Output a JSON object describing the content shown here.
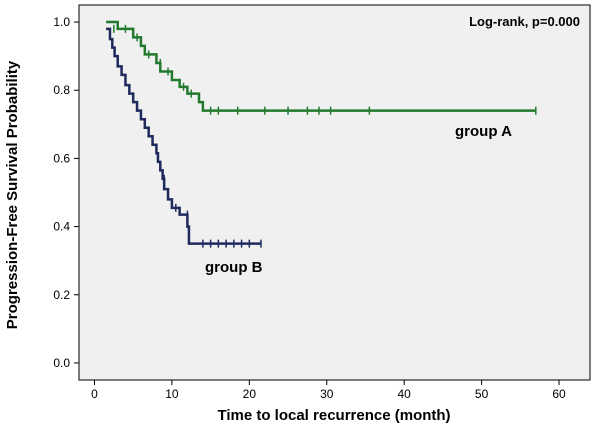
{
  "chart_data": {
    "type": "line",
    "subtype": "kaplan-meier step",
    "xlabel": "Time to local recurrence (month)",
    "ylabel": "Progression-Free Survival Probability",
    "xlim": [
      -2,
      64
    ],
    "ylim": [
      -0.05,
      1.05
    ],
    "xticks": [
      "0",
      "10",
      "20",
      "30",
      "40",
      "50",
      "60"
    ],
    "yticks": [
      "0.0",
      "0.2",
      "0.4",
      "0.6",
      "0.8",
      "1.0"
    ],
    "grid": false,
    "annotation": "Log-rank, p=0.000",
    "plot_background": "#f0f0f0",
    "series": [
      {
        "name": "group A",
        "color": "#217a2e",
        "steps": [
          [
            1.5,
            1.0
          ],
          [
            3.0,
            0.98
          ],
          [
            5.0,
            0.955
          ],
          [
            6.0,
            0.93
          ],
          [
            6.5,
            0.905
          ],
          [
            8.0,
            0.88
          ],
          [
            8.5,
            0.855
          ],
          [
            10.0,
            0.83
          ],
          [
            11.0,
            0.81
          ],
          [
            12.0,
            0.79
          ],
          [
            13.5,
            0.765
          ],
          [
            14.0,
            0.74
          ],
          [
            57.0,
            0.74
          ]
        ],
        "censored": [
          [
            2.5,
            0.98
          ],
          [
            4.0,
            0.98
          ],
          [
            5.5,
            0.955
          ],
          [
            7.0,
            0.905
          ],
          [
            8.5,
            0.88
          ],
          [
            9.5,
            0.855
          ],
          [
            11.5,
            0.81
          ],
          [
            12.5,
            0.79
          ],
          [
            15.0,
            0.74
          ],
          [
            16.0,
            0.74
          ],
          [
            18.5,
            0.74
          ],
          [
            22.0,
            0.74
          ],
          [
            25.0,
            0.74
          ],
          [
            27.5,
            0.74
          ],
          [
            29.0,
            0.74
          ],
          [
            30.5,
            0.74
          ],
          [
            35.5,
            0.74
          ],
          [
            57.0,
            0.74
          ]
        ]
      },
      {
        "name": "group B",
        "color": "#1f2a5c",
        "steps": [
          [
            1.5,
            0.98
          ],
          [
            2.0,
            0.95
          ],
          [
            2.3,
            0.925
          ],
          [
            2.6,
            0.9
          ],
          [
            3.0,
            0.87
          ],
          [
            3.5,
            0.845
          ],
          [
            4.0,
            0.815
          ],
          [
            4.5,
            0.79
          ],
          [
            5.0,
            0.765
          ],
          [
            5.5,
            0.74
          ],
          [
            6.0,
            0.715
          ],
          [
            6.5,
            0.69
          ],
          [
            7.0,
            0.665
          ],
          [
            7.5,
            0.64
          ],
          [
            8.0,
            0.615
          ],
          [
            8.2,
            0.59
          ],
          [
            8.5,
            0.565
          ],
          [
            8.8,
            0.54
          ],
          [
            9.0,
            0.51
          ],
          [
            9.5,
            0.48
          ],
          [
            10.0,
            0.455
          ],
          [
            11.0,
            0.435
          ],
          [
            12.0,
            0.4
          ],
          [
            12.2,
            0.35
          ],
          [
            21.5,
            0.35
          ]
        ],
        "censored": [
          [
            9.0,
            0.54
          ],
          [
            10.5,
            0.455
          ],
          [
            12.0,
            0.435
          ],
          [
            14.0,
            0.35
          ],
          [
            15.0,
            0.35
          ],
          [
            16.0,
            0.35
          ],
          [
            17.0,
            0.35
          ],
          [
            18.0,
            0.35
          ],
          [
            19.0,
            0.35
          ],
          [
            20.0,
            0.35
          ],
          [
            21.5,
            0.35
          ]
        ]
      }
    ]
  }
}
